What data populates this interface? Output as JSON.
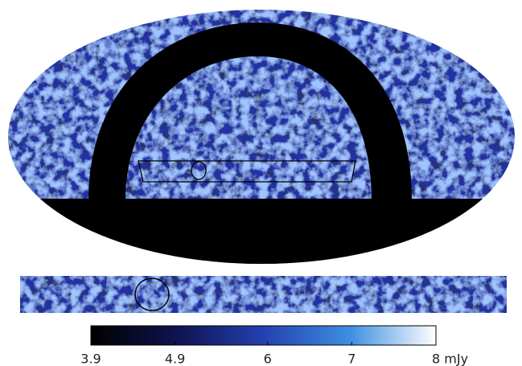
{
  "chart_data": {
    "type": "skymap",
    "clim": [
      3.9,
      8
    ],
    "cticks": [
      3.9,
      4.9,
      6,
      7,
      {
        "value": 8,
        "label": "8 mJy"
      }
    ]
  }
}
